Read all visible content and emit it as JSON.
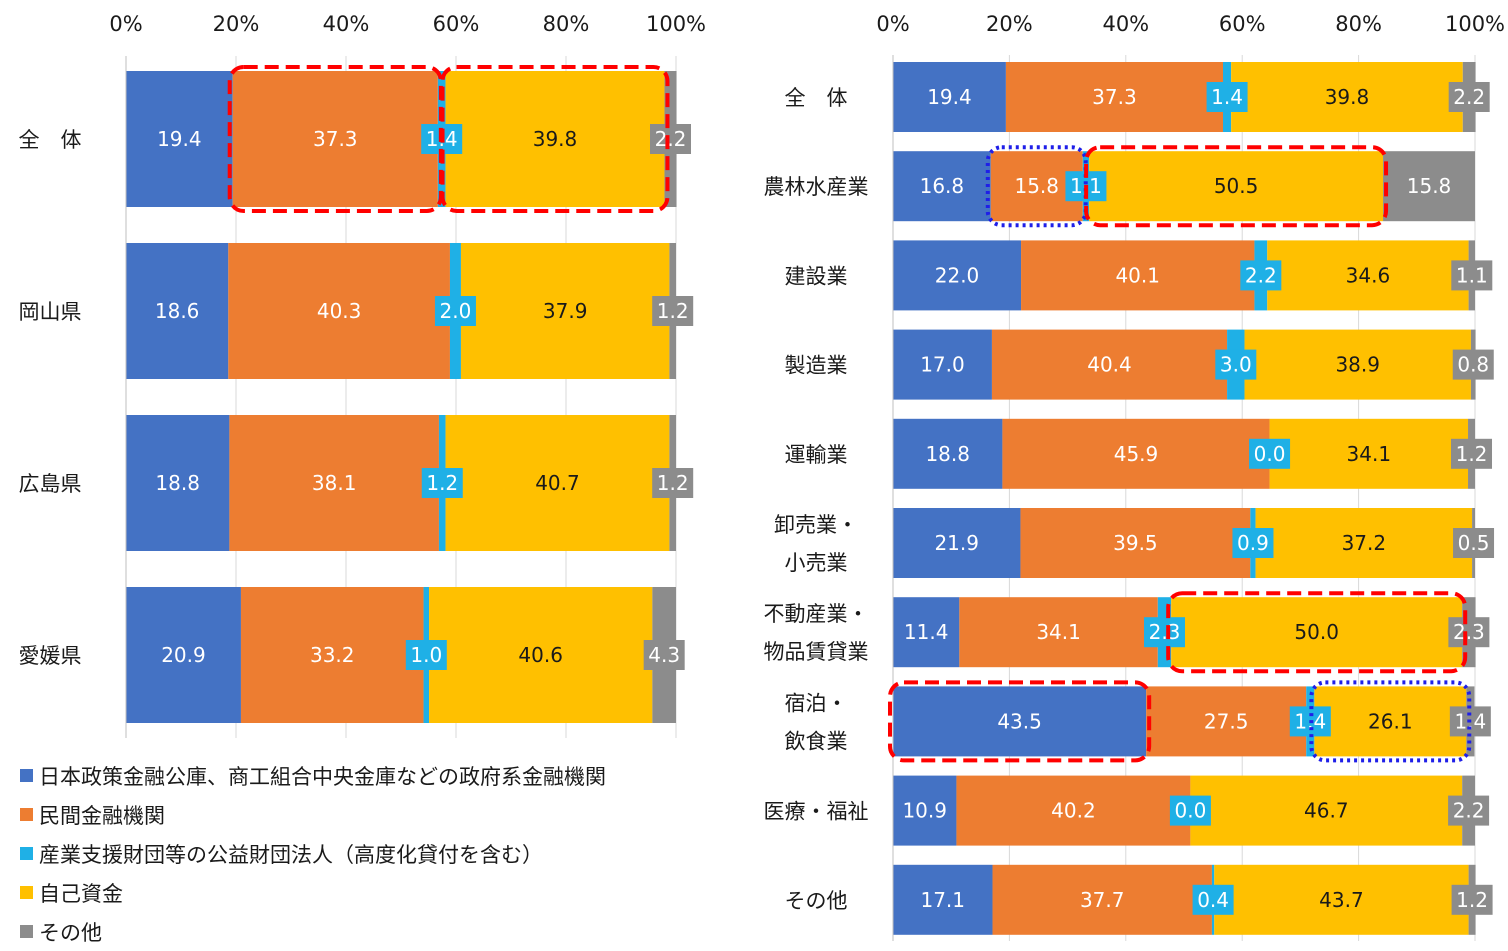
{
  "colors": {
    "government": "#4472C4",
    "private": "#ED7D31",
    "public_foundation": "#1FB0E6",
    "own_funds": "#FFC000",
    "other": "#8C8C8C"
  },
  "legend": [
    {
      "label": "日本政策金融公庫、商工組合中央金庫などの政府系金融機関",
      "color_key": "government"
    },
    {
      "label": "民間金融機関",
      "color_key": "private"
    },
    {
      "label": "産業支援財団等の公益財団法人（高度化貸付を含む）",
      "color_key": "public_foundation"
    },
    {
      "label": "自己資金",
      "color_key": "own_funds"
    },
    {
      "label": "その他",
      "color_key": "other"
    }
  ],
  "chart_data": [
    {
      "type": "bar",
      "stacked": "percent",
      "orientation": "horizontal",
      "xlim": [
        0,
        100
      ],
      "x_ticks": [
        "0%",
        "20%",
        "40%",
        "60%",
        "80%",
        "100%"
      ],
      "categories": [
        "全　体",
        "岡山県",
        "広島県",
        "愛媛県"
      ],
      "series_color_keys": [
        "government",
        "private",
        "public_foundation",
        "own_funds",
        "other"
      ],
      "values": [
        [
          19.4,
          37.3,
          1.4,
          39.8,
          2.2
        ],
        [
          18.6,
          40.3,
          2.0,
          37.9,
          1.2
        ],
        [
          18.8,
          38.1,
          1.2,
          40.7,
          1.2
        ],
        [
          20.9,
          33.2,
          1.0,
          40.6,
          4.3
        ]
      ],
      "data_labels": [
        [
          "19.4",
          "37.3",
          "1.4",
          "39.8",
          "2.2"
        ],
        [
          "18.6",
          "40.3",
          "2.0",
          "37.9",
          "1.2"
        ],
        [
          "18.8",
          "38.1",
          "1.2",
          "40.7",
          "1.2"
        ],
        [
          "20.9",
          "33.2",
          "1.0",
          "40.6",
          "4.3"
        ]
      ],
      "grid": true,
      "tick_position": "top",
      "highlights": [
        {
          "category": 0,
          "segment": 1,
          "style": "red-dashed"
        },
        {
          "category": 0,
          "segment": 3,
          "style": "red-dashed"
        }
      ]
    },
    {
      "type": "bar",
      "stacked": "percent",
      "orientation": "horizontal",
      "xlim": [
        0,
        100
      ],
      "x_ticks": [
        "0%",
        "20%",
        "40%",
        "60%",
        "80%",
        "100%"
      ],
      "categories": [
        [
          "全　体"
        ],
        [
          "農林水産業"
        ],
        [
          "建設業"
        ],
        [
          "製造業"
        ],
        [
          "運輸業"
        ],
        [
          "卸売業・",
          "小売業"
        ],
        [
          "不動産業・",
          "物品賃貸業"
        ],
        [
          "宿泊・",
          "飲食業"
        ],
        [
          "医療・福祉"
        ],
        [
          "その他"
        ]
      ],
      "series_color_keys": [
        "government",
        "private",
        "public_foundation",
        "own_funds",
        "other"
      ],
      "values": [
        [
          19.4,
          37.3,
          1.4,
          39.8,
          2.2
        ],
        [
          16.8,
          15.8,
          1.1,
          50.5,
          15.8
        ],
        [
          22.0,
          40.1,
          2.2,
          34.6,
          1.1
        ],
        [
          17.0,
          40.4,
          3.0,
          38.9,
          0.8
        ],
        [
          18.8,
          45.9,
          0.0,
          34.1,
          1.2
        ],
        [
          21.9,
          39.5,
          0.9,
          37.2,
          0.5
        ],
        [
          11.4,
          34.1,
          2.3,
          50.0,
          2.3
        ],
        [
          43.5,
          27.5,
          1.4,
          26.1,
          1.4
        ],
        [
          10.9,
          40.2,
          0.0,
          46.7,
          2.2
        ],
        [
          17.1,
          37.7,
          0.4,
          43.7,
          1.2
        ]
      ],
      "data_labels": [
        [
          "19.4",
          "37.3",
          "1.4",
          "39.8",
          "2.2"
        ],
        [
          "16.8",
          "15.8",
          "1.1",
          "50.5",
          "15.8"
        ],
        [
          "22.0",
          "40.1",
          "2.2",
          "34.6",
          "1.1"
        ],
        [
          "17.0",
          "40.4",
          "3.0",
          "38.9",
          "0.8"
        ],
        [
          "18.8",
          "45.9",
          "0.0",
          "34.1",
          "1.2"
        ],
        [
          "21.9",
          "39.5",
          "0.9",
          "37.2",
          "0.5"
        ],
        [
          "11.4",
          "34.1",
          "2.3",
          "50.0",
          "2.3"
        ],
        [
          "43.5",
          "27.5",
          "1.4",
          "26.1",
          "1.4"
        ],
        [
          "10.9",
          "40.2",
          "0.0",
          "46.7",
          "2.2"
        ],
        [
          "17.1",
          "37.7",
          "0.4",
          "43.7",
          "1.2"
        ]
      ],
      "grid": true,
      "tick_position": "top",
      "highlights": [
        {
          "category": 1,
          "segment": 1,
          "style": "blue-dotted"
        },
        {
          "category": 1,
          "segment": 3,
          "style": "red-dashed"
        },
        {
          "category": 6,
          "segment": 3,
          "style": "red-dashed"
        },
        {
          "category": 7,
          "segment": 0,
          "style": "red-dashed"
        },
        {
          "category": 7,
          "segment": 3,
          "style": "blue-dotted"
        }
      ]
    }
  ]
}
